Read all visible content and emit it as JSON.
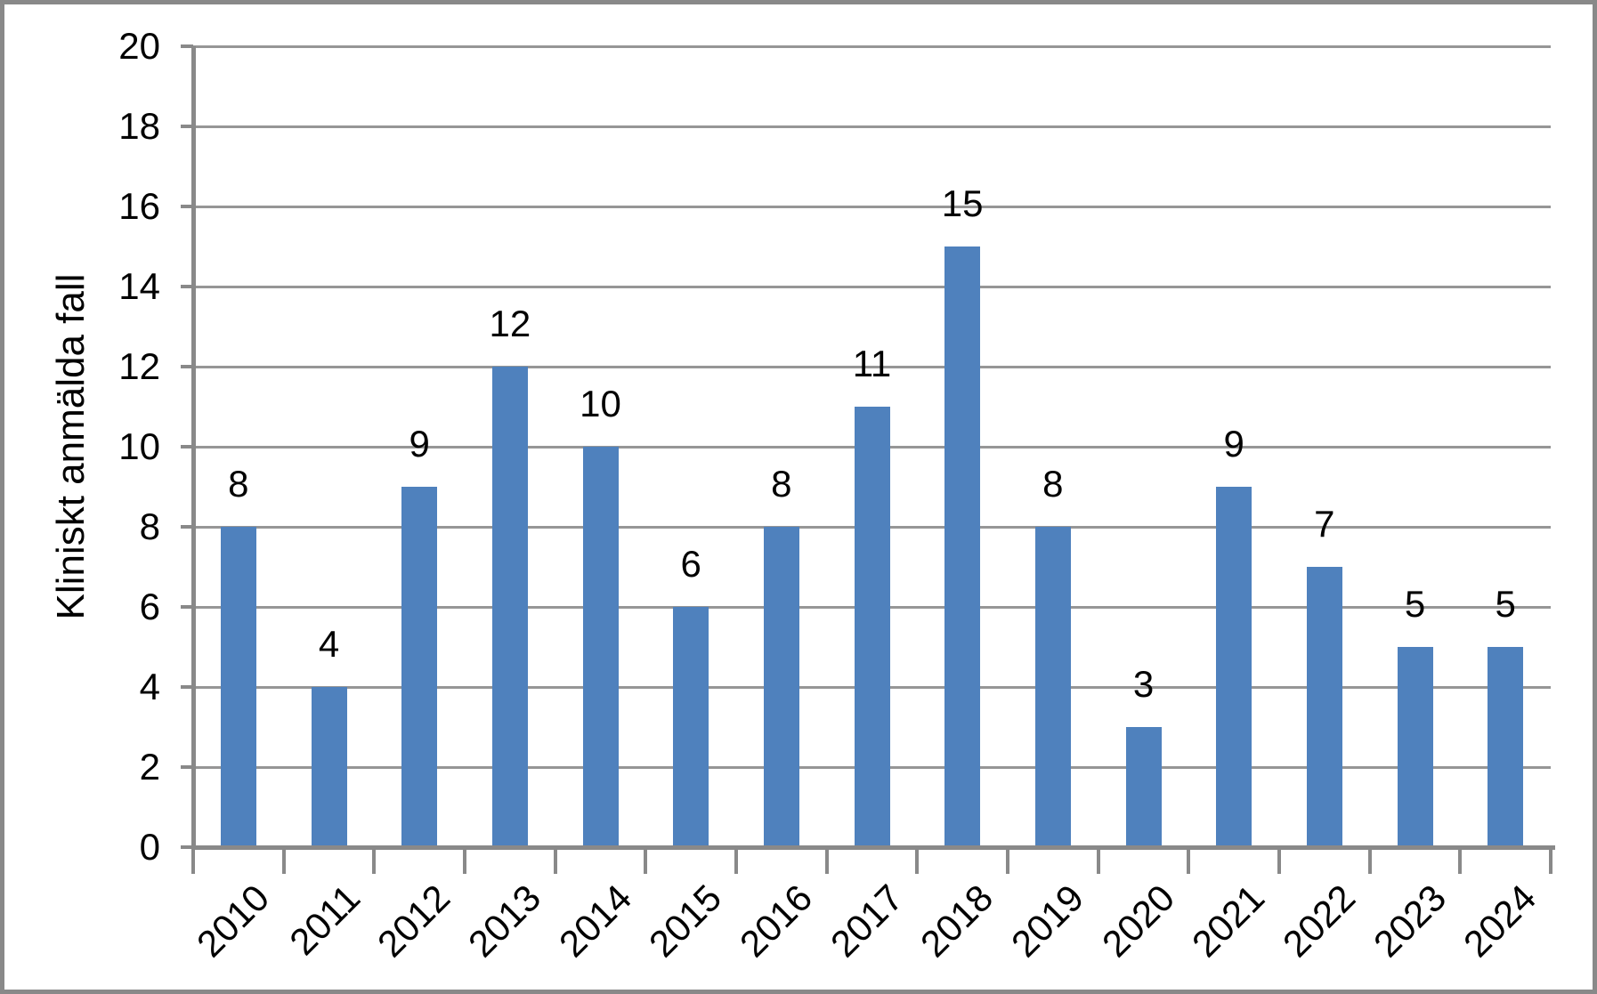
{
  "figure": {
    "background": "#ffffff",
    "border_color": "#898989"
  },
  "chart_data": {
    "type": "bar",
    "title": "",
    "categories": [
      "2010",
      "2011",
      "2012",
      "2013",
      "2014",
      "2015",
      "2016",
      "2017",
      "2018",
      "2019",
      "2020",
      "2021",
      "2022",
      "2023",
      "2024"
    ],
    "values": [
      8,
      4,
      9,
      12,
      10,
      6,
      8,
      11,
      15,
      8,
      3,
      9,
      7,
      5,
      5
    ],
    "xlabel": "",
    "ylabel": "Kliniskt anmälda fall",
    "ylim": [
      0,
      20
    ],
    "yticks": [
      0,
      2,
      4,
      6,
      8,
      10,
      12,
      14,
      16,
      18,
      20
    ],
    "grid": true,
    "legend_position": "none",
    "show_data_labels": true,
    "x_tick_rotation_deg": 45,
    "colors": {
      "bar": "#4f81bd",
      "gridline": "#969696",
      "axis": "#898989",
      "text": "#000000"
    }
  }
}
